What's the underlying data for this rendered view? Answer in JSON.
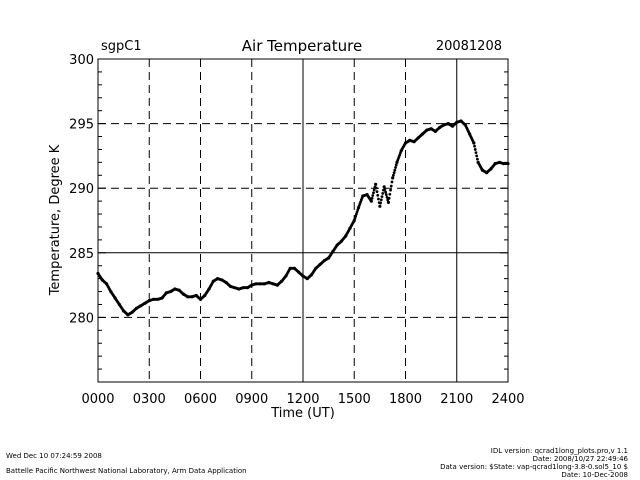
{
  "chart_data": {
    "type": "scatter",
    "title": "Air Temperature",
    "site": "sgpC1",
    "date": "20081208",
    "xlabel": "Time (UT)",
    "ylabel": "Temperature, Degree K",
    "xlim": [
      0,
      2400
    ],
    "ylim": [
      275,
      300
    ],
    "x_ticks": [
      "0000",
      "0300",
      "0600",
      "0900",
      "1200",
      "1500",
      "1800",
      "2100",
      "2400"
    ],
    "y_ticks": [
      "280",
      "285",
      "290",
      "295",
      "300"
    ],
    "x_tick_hours": [
      0,
      3,
      6,
      9,
      12,
      15,
      18,
      21,
      24
    ],
    "y_tick_values": [
      280,
      285,
      290,
      295,
      300
    ],
    "reference_line": 285,
    "series": [
      {
        "name": "Air Temperature",
        "x_hours": [
          0,
          0.25,
          0.5,
          0.75,
          1.0,
          1.25,
          1.5,
          1.75,
          2.0,
          2.25,
          2.5,
          2.75,
          3.0,
          3.25,
          3.5,
          3.75,
          4.0,
          4.25,
          4.5,
          4.75,
          5.0,
          5.25,
          5.5,
          5.75,
          6.0,
          6.25,
          6.5,
          6.75,
          7.0,
          7.25,
          7.5,
          7.75,
          8.0,
          8.25,
          8.5,
          8.75,
          9.0,
          9.25,
          9.5,
          9.75,
          10.0,
          10.25,
          10.5,
          10.75,
          11.0,
          11.25,
          11.5,
          11.75,
          12.0,
          12.25,
          12.5,
          12.75,
          13.0,
          13.25,
          13.5,
          13.75,
          14.0,
          14.25,
          14.5,
          14.75,
          15.0,
          15.25,
          15.5,
          15.75,
          16.0,
          16.25,
          16.5,
          16.75,
          17.0,
          17.25,
          17.5,
          17.75,
          18.0,
          18.25,
          18.5,
          18.75,
          19.0,
          19.25,
          19.5,
          19.75,
          20.0,
          20.25,
          20.5,
          20.75,
          21.0,
          21.25,
          21.5,
          21.75,
          22.0,
          22.25,
          22.5,
          22.75,
          23.0,
          23.25,
          23.5,
          23.75,
          24.0
        ],
        "values": [
          283.4,
          282.9,
          282.6,
          282.0,
          281.5,
          281.0,
          280.5,
          280.2,
          280.4,
          280.7,
          280.9,
          281.1,
          281.3,
          281.4,
          281.4,
          281.5,
          281.9,
          282.0,
          282.2,
          282.1,
          281.8,
          281.6,
          281.6,
          281.7,
          281.4,
          281.7,
          282.2,
          282.8,
          283.0,
          282.9,
          282.7,
          282.4,
          282.3,
          282.2,
          282.3,
          282.3,
          282.5,
          282.6,
          282.6,
          282.6,
          282.7,
          282.6,
          282.5,
          282.8,
          283.2,
          283.8,
          283.8,
          283.5,
          283.2,
          283.0,
          283.3,
          283.8,
          284.1,
          284.4,
          284.6,
          285.1,
          285.6,
          285.9,
          286.3,
          286.9,
          287.5,
          288.5,
          289.4,
          289.5,
          289.0,
          290.3,
          288.6,
          290.1,
          288.9,
          290.8,
          292.0,
          292.9,
          293.5,
          293.7,
          293.6,
          293.9,
          294.2,
          294.5,
          294.6,
          294.4,
          294.7,
          294.9,
          295.0,
          294.8,
          295.1,
          295.2,
          294.9,
          294.2,
          293.5,
          292.0,
          291.4,
          291.2,
          291.5,
          291.9,
          292.0,
          291.9,
          291.9
        ]
      }
    ]
  },
  "footer": {
    "timestamp": "Wed Dec 10 07:24:59 2008",
    "organization": "Battelle Pacific Northwest National Laboratory, Arm Data Application",
    "idl_version": "IDL version: qcrad1long_plots.pro,v 1.1",
    "idl_date": "Date: 2008/10/27 22:49:46",
    "data_version": "Data version: $State: vap-qcrad1long-3.8-0.sol5_10 $",
    "data_date": "Date: 10-Dec-2008"
  },
  "colors": {
    "foreground": "#000000",
    "background": "#ffffff"
  }
}
